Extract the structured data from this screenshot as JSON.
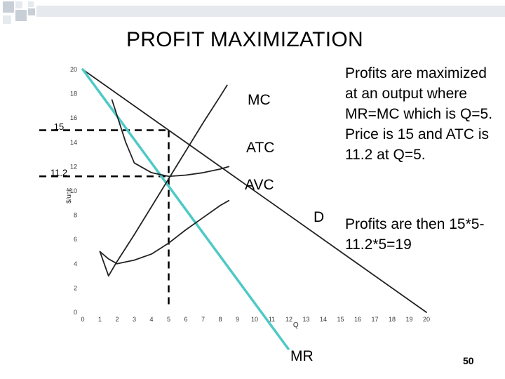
{
  "title": "PROFIT MAXIMIZATION",
  "explanation": {
    "paragraph1": "Profits are maximized at an output where MR=MC which is Q=5. Price is 15 and ATC is 11.2 at Q=5.",
    "paragraph2": "Profits are then 15*5-11.2*5=19"
  },
  "page_number": "50",
  "colors": {
    "mr_line": "#4ec9c7",
    "curves": "#222222",
    "deco_square": "#c9cfd6",
    "deco_square_light": "#e6e9ed"
  },
  "chart_data": {
    "type": "line",
    "xlabel": "Q",
    "ylabel": "$/unit",
    "xlim": [
      0,
      20
    ],
    "ylim": [
      0,
      20
    ],
    "x_ticks": [
      0,
      1,
      2,
      3,
      4,
      5,
      6,
      7,
      8,
      9,
      10,
      11,
      12,
      13,
      14,
      15,
      16,
      17,
      18,
      19,
      20
    ],
    "y_ticks": [
      0,
      2,
      4,
      6,
      8,
      10,
      12,
      14,
      16,
      18,
      20
    ],
    "series": [
      {
        "name": "D",
        "points": [
          [
            0,
            20
          ],
          [
            20,
            0
          ]
        ]
      },
      {
        "name": "MR",
        "points": [
          [
            0,
            20
          ],
          [
            10,
            0
          ]
        ]
      },
      {
        "name": "MC",
        "points": [
          [
            1,
            5
          ],
          [
            1.5,
            3
          ],
          [
            2,
            4.2
          ],
          [
            3,
            6.4
          ],
          [
            4,
            8.7
          ],
          [
            5,
            11
          ],
          [
            6,
            13.3
          ],
          [
            7,
            15.6
          ],
          [
            8,
            17.8
          ],
          [
            8.4,
            18.7
          ]
        ]
      },
      {
        "name": "ATC",
        "points": [
          [
            1.7,
            17.5
          ],
          [
            2.5,
            14
          ],
          [
            3,
            12.3
          ],
          [
            4,
            11.5
          ],
          [
            5,
            11.2
          ],
          [
            6,
            11.3
          ],
          [
            7,
            11.5
          ],
          [
            8,
            11.8
          ],
          [
            8.5,
            12
          ]
        ]
      },
      {
        "name": "AVC",
        "points": [
          [
            1,
            5
          ],
          [
            1.5,
            4.4
          ],
          [
            2,
            4
          ],
          [
            3,
            4.3
          ],
          [
            4,
            4.8
          ],
          [
            5,
            5.7
          ],
          [
            6,
            6.8
          ],
          [
            7,
            7.8
          ],
          [
            8,
            8.8
          ],
          [
            8.5,
            9.2
          ]
        ]
      }
    ],
    "annotations": [
      {
        "text": "15",
        "y": 15,
        "x": 5
      },
      {
        "text": "11.2",
        "y": 11.2,
        "x": 5
      }
    ],
    "grid": false
  }
}
